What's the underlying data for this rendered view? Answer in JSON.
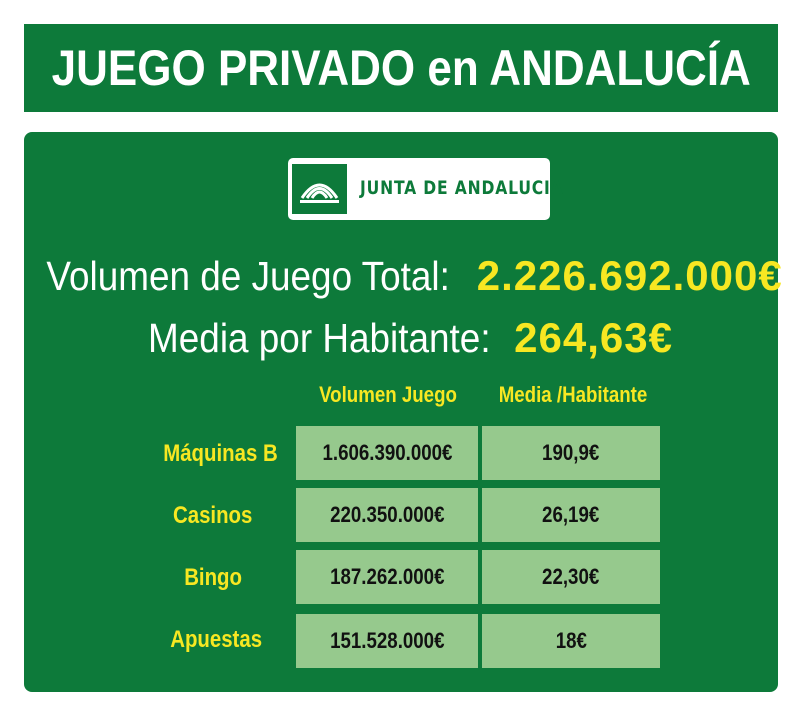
{
  "header": {
    "title": "JUEGO PRIVADO en ANDALUCÍA"
  },
  "logo": {
    "text": "JUNTA DE ANDALUCIA"
  },
  "summary": {
    "total_label": "Volumen de Juego Total:",
    "total_value": "2.226.692.000€",
    "average_label": "Media por Habitante:",
    "average_value": "264,63€"
  },
  "colors": {
    "green": "#0d7a3a",
    "yellow": "#f7e722",
    "cell": "#96c98d"
  },
  "chart_data": {
    "type": "table",
    "columns": [
      "Volumen Juego",
      "Media /Habitante"
    ],
    "rows": [
      {
        "label": "Máquinas B",
        "volumen": "1.606.390.000€",
        "media": "190,9€"
      },
      {
        "label": "Casinos",
        "volumen": "220.350.000€",
        "media": "26,19€"
      },
      {
        "label": "Bingo",
        "volumen": "187.262.000€",
        "media": "22,30€"
      },
      {
        "label": "Apuestas",
        "volumen": "151.528.000€",
        "media": "18€"
      }
    ]
  }
}
